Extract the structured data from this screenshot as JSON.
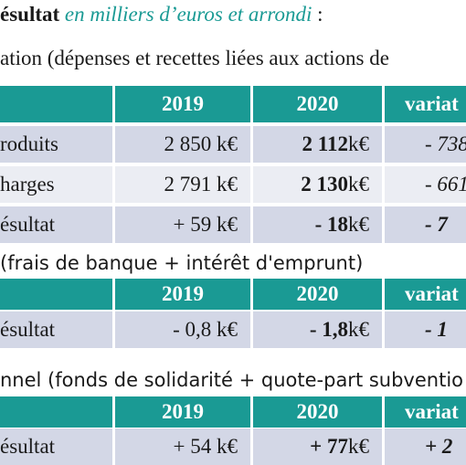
{
  "title": {
    "heading": "ésultat",
    "subtitle": "en milliers d’euros et arrondi",
    "colon": " :"
  },
  "section1": {
    "caption": "ation (dépenses et recettes liées aux actions de",
    "headers": [
      "",
      "2019",
      "2020",
      "variat"
    ],
    "rows": [
      {
        "label": "roduits",
        "y2019": "2 850 k€",
        "y2020_num": "2 112",
        "y2020_unit": " k€",
        "variation": "- 738"
      },
      {
        "label": "harges",
        "y2019": "2 791 k€",
        "y2020_num": "2 130",
        "y2020_unit": " k€",
        "variation": "- 661"
      },
      {
        "label": "ésultat",
        "y2019": "+ 59 k€",
        "y2020_num": "- 18",
        "y2020_unit": " k€",
        "variation": "- 7"
      }
    ]
  },
  "section2": {
    "caption": "(frais de banque + intérêt d'emprunt)",
    "headers": [
      "",
      "2019",
      "2020",
      "variat"
    ],
    "rows": [
      {
        "label": "ésultat",
        "y2019": "- 0,8 k€",
        "y2020_num": "- 1,8",
        "y2020_unit": " k€",
        "variation": "- 1"
      }
    ]
  },
  "section3": {
    "caption": "nnel (fonds de solidarité + quote-part subventio",
    "headers": [
      "",
      "2019",
      "2020",
      "variat"
    ],
    "rows": [
      {
        "label": "ésultat",
        "y2019": "+ 54 k€",
        "y2020_num": "+ 77",
        "y2020_unit": " k€",
        "variation": "+ 2"
      }
    ]
  },
  "colors": {
    "header_teal": "#1a9a94",
    "row_dark": "#d3d7e6",
    "row_light": "#ebedf3"
  }
}
